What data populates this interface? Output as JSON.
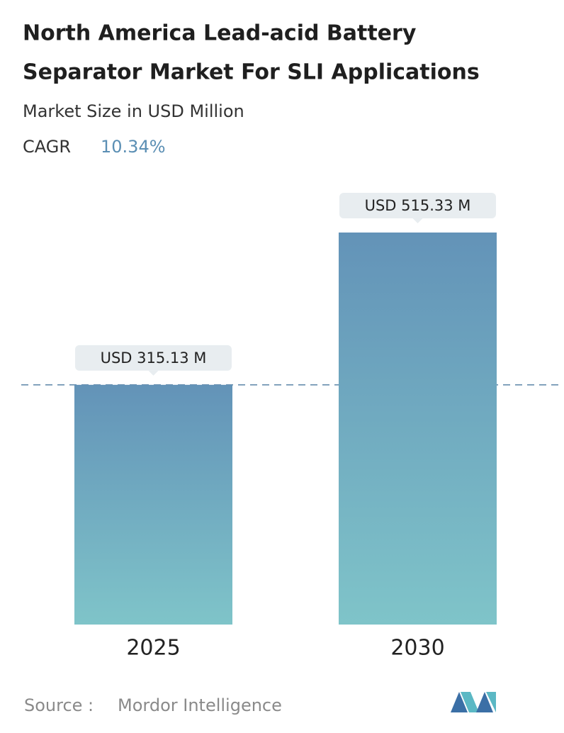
{
  "chart_data": {
    "type": "bar",
    "title_lines": [
      "North America Lead-acid Battery",
      "Separator Market For SLI Applications"
    ],
    "subtitle": "Market Size in USD Million",
    "cagr_label": "CAGR",
    "cagr_value": "10.34%",
    "categories": [
      "2025",
      "2030"
    ],
    "values": [
      315.13,
      515.33
    ],
    "value_labels": [
      "USD 315.13 M",
      "USD 515.33 M"
    ],
    "colors": [
      "#6393b8",
      "#7fc4c9"
    ],
    "reference_line": true,
    "source_label": "Source :",
    "source": "Mordor Intelligence"
  }
}
